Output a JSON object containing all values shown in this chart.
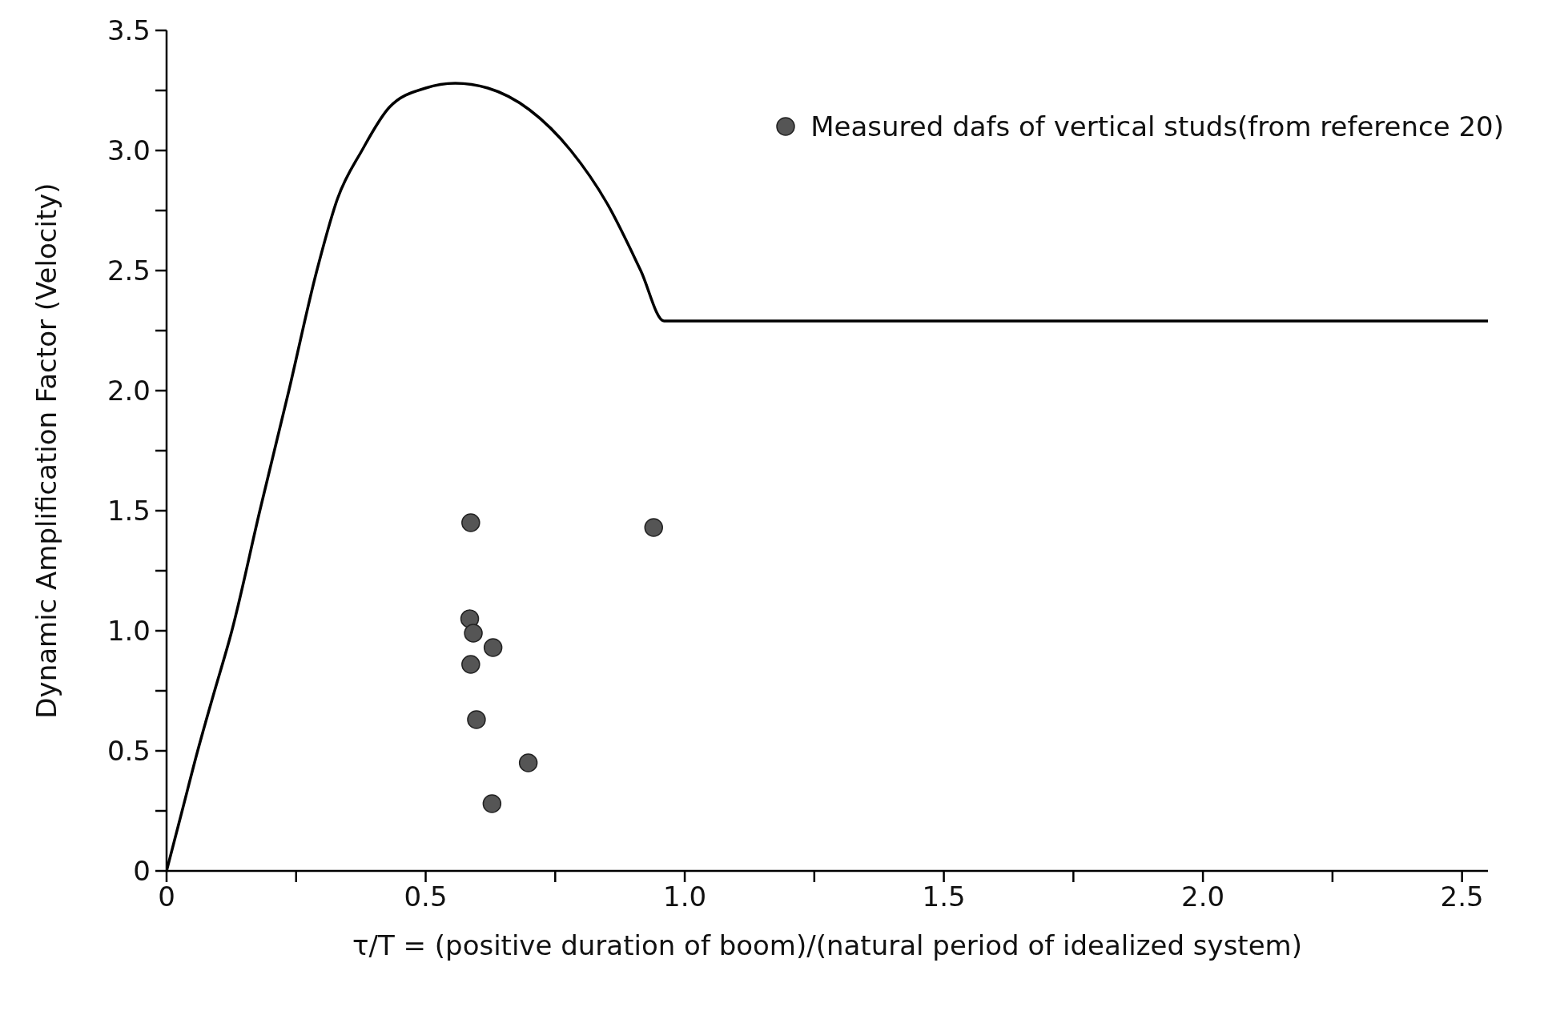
{
  "chart_data": {
    "type": "line",
    "xlabel": "τ/T = (positive duration of boom)/(natural period of idealized system)",
    "ylabel": "Dynamic Amplification Factor (Velocity)",
    "xlim": [
      0,
      2.55
    ],
    "ylim": [
      0,
      3.5
    ],
    "xticks": [
      0,
      {
        "value": 0.25,
        "label": null
      },
      {
        "value": 0.5,
        "label": "0.5"
      },
      {
        "value": 0.75,
        "label": null
      },
      {
        "value": 1,
        "label": "1.0"
      },
      {
        "value": 1.25,
        "label": null
      },
      {
        "value": 1.5,
        "label": "1.5"
      },
      {
        "value": 1.75,
        "label": null
      },
      {
        "value": 2,
        "label": "2.0"
      },
      {
        "value": 2.25,
        "label": null
      },
      {
        "value": 2.5,
        "label": "2.5"
      }
    ],
    "yticks": [
      0,
      {
        "value": 0.25,
        "label": null
      },
      {
        "value": 0.5,
        "label": "0.5"
      },
      {
        "value": 0.75,
        "label": null
      },
      {
        "value": 1,
        "label": "1.0"
      },
      {
        "value": 1.25,
        "label": null
      },
      {
        "value": 1.5,
        "label": "1.5"
      },
      {
        "value": 1.75,
        "label": null
      },
      {
        "value": 2,
        "label": "2.0"
      },
      {
        "value": 2.25,
        "label": null
      },
      {
        "value": 2.5,
        "label": "2.5"
      },
      {
        "value": 2.75,
        "label": null
      },
      {
        "value": 3,
        "label": "3.0"
      },
      {
        "value": 3.25,
        "label": null
      },
      {
        "value": 3.5,
        "label": "3.5"
      }
    ],
    "grid": false,
    "legend": "top right",
    "series": [
      {
        "type": "line",
        "color": "#000000",
        "marker": "none",
        "line_style": "solid",
        "x": [
          0,
          0.03,
          0.06,
          0.09,
          0.126,
          0.18,
          0.236,
          0.29,
          0.33,
          0.377,
          0.43,
          0.5,
          0.557,
          0.62,
          0.7,
          0.78,
          0.85,
          0.915,
          0.96,
          1.5,
          2.0,
          2.55
        ],
        "values": [
          0,
          0.25,
          0.5,
          0.73,
          1.0,
          1.5,
          2.0,
          2.5,
          2.8,
          3.0,
          3.18,
          3.26,
          3.28,
          3.26,
          3.17,
          3.0,
          2.78,
          2.5,
          2.29,
          2.29,
          2.29,
          2.29
        ]
      },
      {
        "type": "scatter",
        "name": "Measured dafs of vertical studs(from reference 20)",
        "color": "#555555",
        "marker": "circle",
        "x": [
          0.587,
          0.94,
          0.585,
          0.592,
          0.63,
          0.587,
          0.598,
          0.698,
          0.628
        ],
        "values": [
          1.45,
          1.43,
          1.05,
          0.99,
          0.93,
          0.86,
          0.63,
          0.45,
          0.28
        ]
      }
    ]
  }
}
